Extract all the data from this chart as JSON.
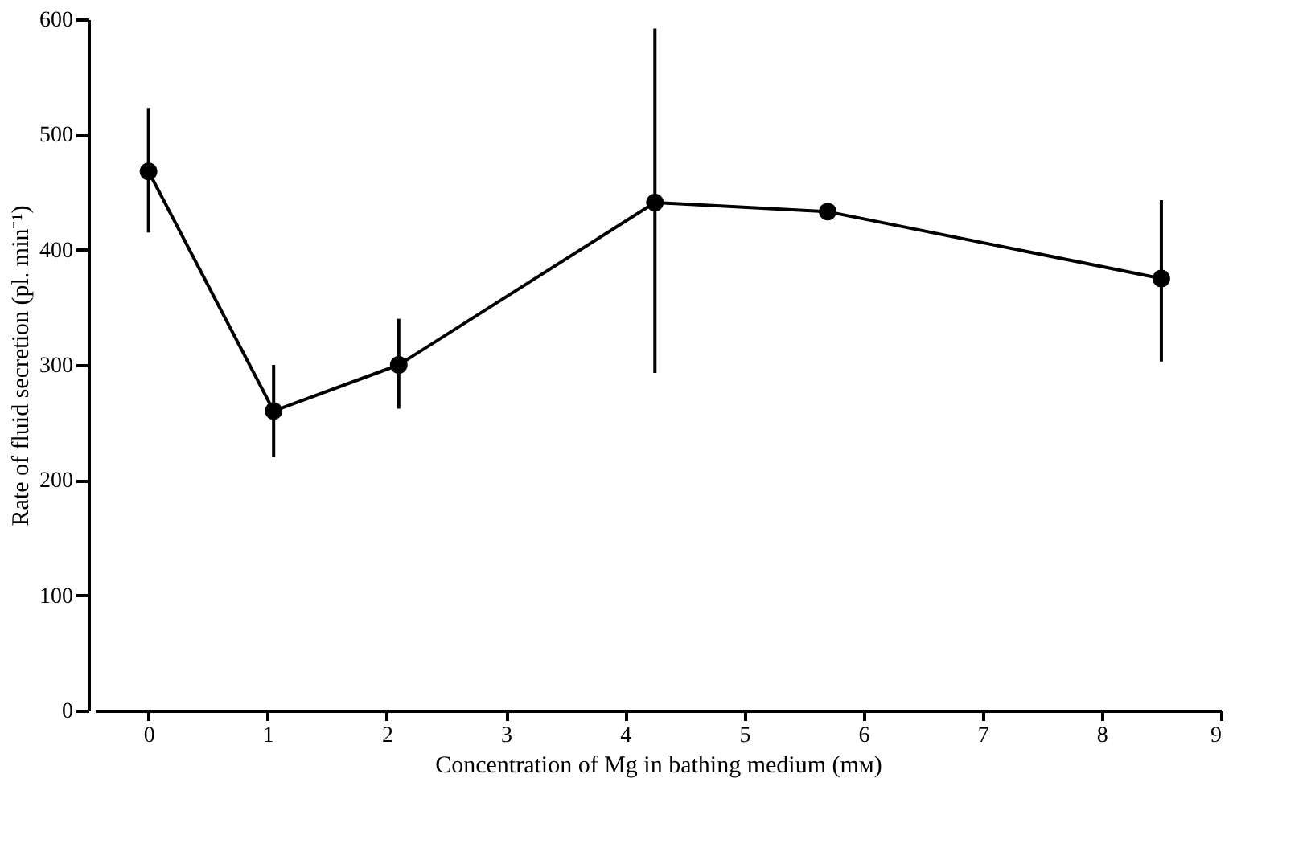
{
  "chart_data": {
    "type": "line",
    "xlabel": "Concentration of Mg in bathing medium (mᴍ)",
    "ylabel": "Rate of fluid secretion (pl. min⁻¹)",
    "x": [
      0,
      1.05,
      2.1,
      4.25,
      5.7,
      8.5
    ],
    "series": [
      {
        "color": "#000000",
        "values": [
          468,
          260,
          300,
          441,
          433,
          375
        ],
        "errors": [
          [
            415,
            523
          ],
          [
            220,
            300
          ],
          [
            262,
            340
          ],
          [
            293,
            592
          ],
          null,
          [
            303,
            443
          ]
        ]
      }
    ],
    "xlim": [
      -0.45,
      9
    ],
    "xticks": [
      0,
      1,
      2,
      3,
      4,
      5,
      6,
      7,
      8,
      9
    ],
    "ylim": [
      0,
      600
    ],
    "yticks": [
      0,
      100,
      200,
      300,
      400,
      500,
      600
    ],
    "marker": "circle",
    "line_style": "solid",
    "grid": false
  }
}
